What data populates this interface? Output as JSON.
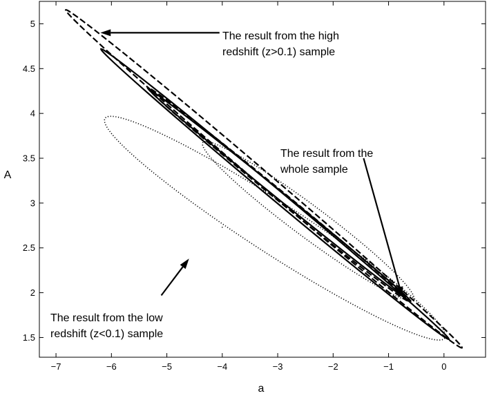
{
  "chart_data": {
    "type": "contour",
    "title": "",
    "xlabel": "a",
    "ylabel": "A",
    "xlim": [
      -7.3,
      0.75
    ],
    "ylim": [
      1.28,
      5.25
    ],
    "xticks": [
      -7,
      -6,
      -5,
      -4,
      -3,
      -2,
      -1,
      0
    ],
    "yticks": [
      1.5,
      2,
      2.5,
      3,
      3.5,
      4,
      4.5,
      5
    ],
    "grid": false,
    "legend": null,
    "series": [
      {
        "group": "whole",
        "style": "solid",
        "contours": [
          {
            "level": "inner",
            "center": [
              -2.95,
              3.08
            ],
            "extreme_points": [
              [
                -5.3,
                4.25
              ],
              [
                -0.6,
                1.9
              ]
            ],
            "half_width": 0.055
          },
          {
            "level": "outer",
            "center": [
              -3.05,
              3.1
            ],
            "extreme_points": [
              [
                -6.2,
                4.72
              ],
              [
                0.08,
                1.48
              ]
            ],
            "half_width": 0.08
          }
        ]
      },
      {
        "group": "high",
        "style": "dashed",
        "contours": [
          {
            "level": "inner",
            "center": [
              -3.0,
              3.1
            ],
            "extreme_points": [
              [
                -5.3,
                4.3
              ],
              [
                -0.6,
                1.92
              ]
            ],
            "half_width": 0.07
          },
          {
            "level": "outer",
            "center": [
              -3.25,
              3.27
            ],
            "extreme_points": [
              [
                -6.85,
                5.15
              ],
              [
                0.3,
                1.38
              ]
            ],
            "half_width": 0.1
          }
        ]
      },
      {
        "group": "low",
        "style": "dotted",
        "contours": [
          {
            "level": "inner",
            "center": [
              -2.45,
              2.8
            ],
            "extreme_points": [
              [
                -5.65,
                3.62
              ],
              [
                -1.85,
                1.87
              ]
            ],
            "half_width": 0.22
          },
          {
            "level": "outer",
            "center": [
              -3.05,
              2.72
            ],
            "extreme_points": [
              [
                -6.78,
                3.98
              ],
              [
                -0.65,
                1.53
              ]
            ],
            "half_width": 0.34
          }
        ]
      }
    ],
    "center_marker": [
      -4.0,
      2.73
    ],
    "annotations": [
      {
        "lines": [
          "The result from the high",
          "redshift (z>0.1) sample"
        ],
        "arrow_tip": [
          -6.2,
          4.9
        ],
        "arrow_tail": [
          -4.05,
          4.9
        ]
      },
      {
        "lines": [
          "The result from the",
          "whole sample"
        ],
        "arrow_tip": [
          -0.75,
          1.95
        ],
        "arrow_tail": [
          -1.45,
          3.5
        ]
      },
      {
        "lines": [
          "The result from the low",
          "redshift (z<0.1) sample"
        ],
        "arrow_tip": [
          -4.6,
          2.38
        ],
        "arrow_tail": [
          -5.1,
          1.97
        ]
      }
    ]
  }
}
